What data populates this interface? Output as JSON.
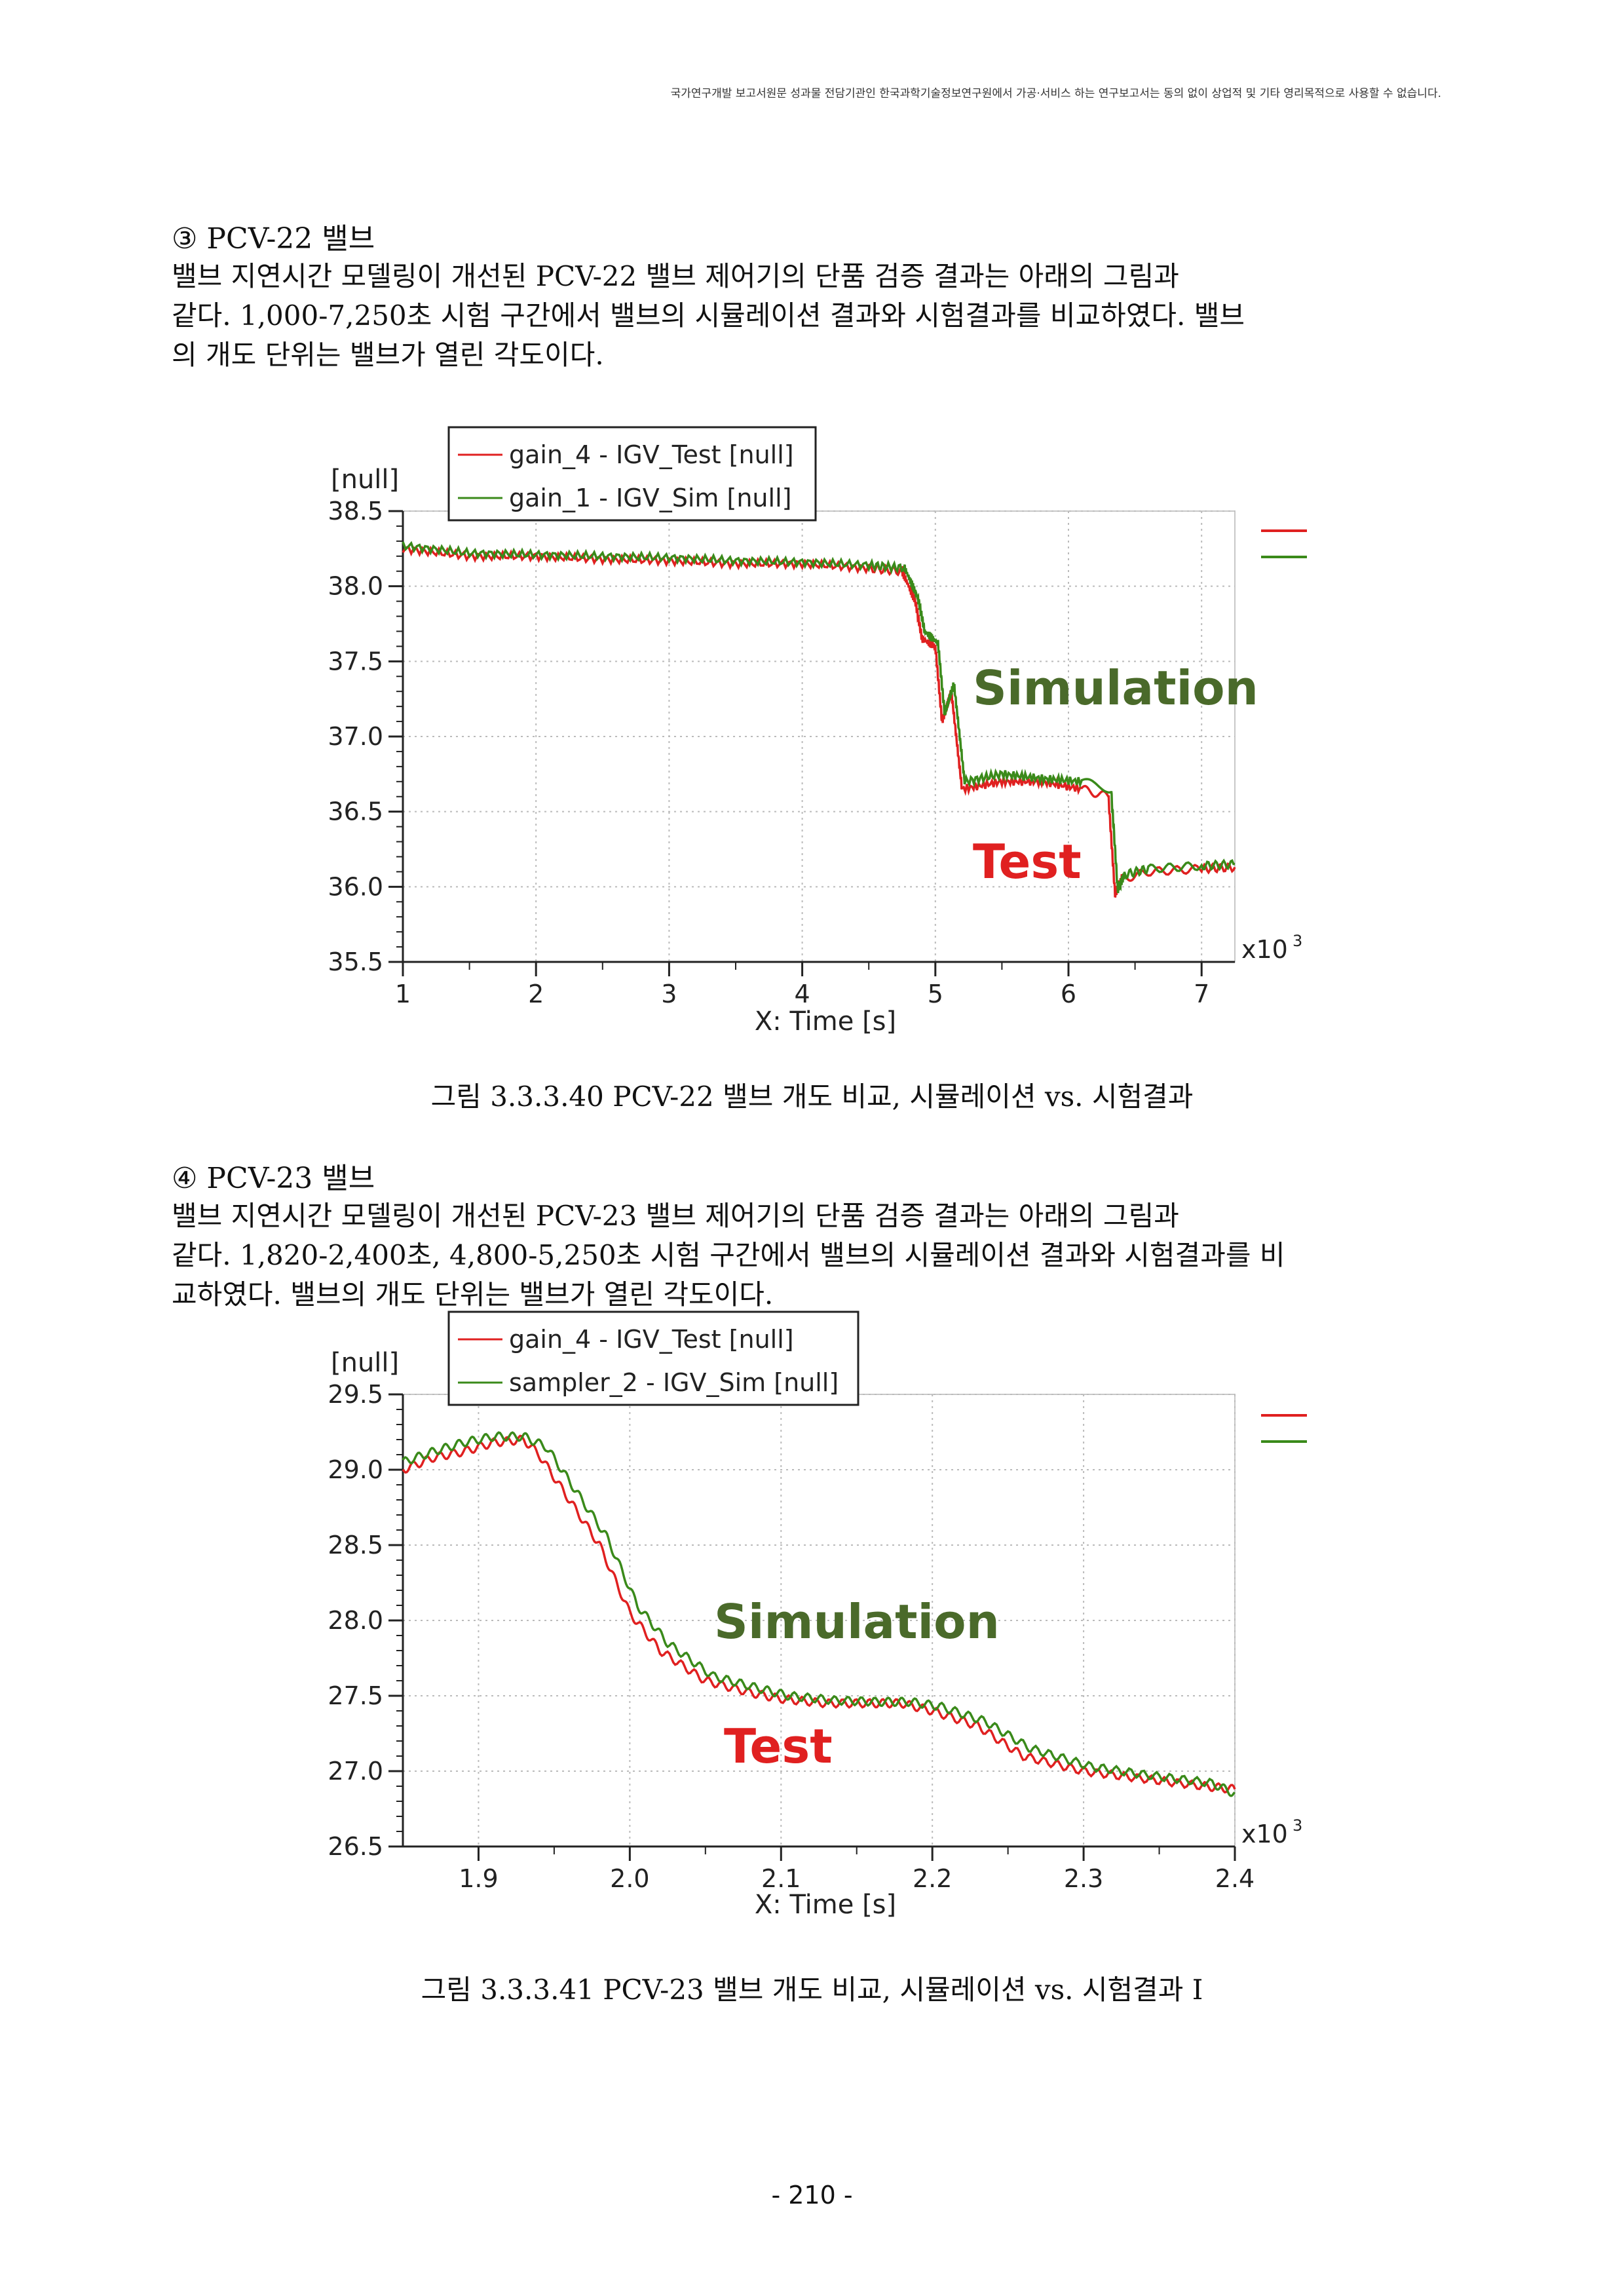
{
  "header_note": "국가연구개발 보고서원문 성과물 전담기관인 한국과학기술정보연구원에서 가공·서비스 하는 연구보고서는 동의 없이 상업적 및 기타 영리목적으로 사용할 수 없습니다.",
  "section3": {
    "title": "③ PCV-22 밸브",
    "lines": [
      "밸브 지연시간 모델링이 개선된 PCV-22 밸브 제어기의 단품 검증 결과는 아래의 그림과",
      "같다. 1,000-7,250초 시험 구간에서 밸브의 시뮬레이션 결과와 시험결과를 비교하였다. 밸브",
      "의 개도 단위는 밸브가 열린 각도이다."
    ]
  },
  "section4": {
    "title": "④ PCV-23 밸브",
    "lines": [
      "밸브 지연시간 모델링이 개선된 PCV-23 밸브 제어기의 단품 검증 결과는 아래의 그림과",
      "같다. 1,820-2,400초, 4,800-5,250초 시험 구간에서 밸브의 시뮬레이션 결과와 시험결과를 비",
      "교하였다. 밸브의 개도 단위는 밸브가 열린 각도이다."
    ]
  },
  "caption1": "그림 3.3.3.40 PCV-22 밸브 개도 비교, 시뮬레이션 vs. 시험결과",
  "caption2": "그림 3.3.3.41 PCV-23 밸브 개도 비교, 시뮬레이션 vs. 시험결과 I",
  "page_number": "- 210 -",
  "colors": {
    "test": "#e02020",
    "sim": "#3a8a1a",
    "annot_sim": "#4a6a2a",
    "annot_test": "#e02020"
  },
  "chart_data": [
    {
      "type": "line",
      "yunit": "[null]",
      "xlabel": "X: Time [s]",
      "x_multiplier": "x10",
      "x_multiplier_exp": "3",
      "xlim": [
        1,
        7.25
      ],
      "ylim": [
        35.5,
        38.5
      ],
      "xticks": [
        1,
        2,
        3,
        4,
        5,
        6,
        7
      ],
      "xtick_labels": [
        "1",
        "2",
        "3",
        "4",
        "5",
        "6",
        "7"
      ],
      "yticks": [
        35.5,
        36.0,
        36.5,
        37.0,
        37.5,
        38.0,
        38.5
      ],
      "ytick_labels": [
        "35.5",
        "36.0",
        "36.5",
        "37.0",
        "37.5",
        "38.0",
        "38.5"
      ],
      "grid": true,
      "legend_position": "top-left",
      "annotations": [
        "Simulation",
        "Test"
      ],
      "series": [
        {
          "name": "gain_4 - IGV_Test [null]",
          "color": "#e02020",
          "x": [
            1.0,
            1.5,
            2.0,
            2.5,
            3.0,
            3.5,
            4.0,
            4.5,
            4.75,
            4.85,
            4.9,
            5.0,
            5.05,
            5.12,
            5.2,
            5.5,
            5.8,
            6.1,
            6.3,
            6.35,
            6.4,
            6.6,
            7.0,
            7.25
          ],
          "y": [
            38.25,
            38.2,
            38.2,
            38.18,
            38.17,
            38.15,
            38.15,
            38.12,
            38.1,
            37.9,
            37.65,
            37.6,
            37.1,
            37.3,
            36.65,
            36.7,
            36.7,
            36.65,
            36.6,
            35.95,
            36.05,
            36.1,
            36.12,
            36.13
          ]
        },
        {
          "name": "gain_1 - IGV_Sim [null]",
          "color": "#3a8a1a",
          "x": [
            1.0,
            1.5,
            2.0,
            2.5,
            3.0,
            3.5,
            4.0,
            4.5,
            4.77,
            4.87,
            4.92,
            5.02,
            5.07,
            5.14,
            5.22,
            5.5,
            5.8,
            6.1,
            6.32,
            6.37,
            6.42,
            6.6,
            7.0,
            7.25
          ],
          "y": [
            38.27,
            38.22,
            38.21,
            38.2,
            38.19,
            38.17,
            38.16,
            38.14,
            38.12,
            37.92,
            37.7,
            37.62,
            37.15,
            37.35,
            36.7,
            36.75,
            36.72,
            36.7,
            36.65,
            35.98,
            36.08,
            36.12,
            36.14,
            36.15
          ]
        }
      ]
    },
    {
      "type": "line",
      "yunit": "[null]",
      "xlabel": "X: Time [s]",
      "x_multiplier": "x10",
      "x_multiplier_exp": "3",
      "xlim": [
        1.85,
        2.4
      ],
      "ylim": [
        26.5,
        29.5
      ],
      "xticks": [
        1.9,
        2.0,
        2.1,
        2.2,
        2.3,
        2.4
      ],
      "xtick_labels": [
        "1.9",
        "2.0",
        "2.1",
        "2.2",
        "2.3",
        "2.4"
      ],
      "yticks": [
        26.5,
        27.0,
        27.5,
        28.0,
        28.5,
        29.0,
        29.5
      ],
      "ytick_labels": [
        "26.5",
        "27.0",
        "27.5",
        "28.0",
        "28.5",
        "29.0",
        "29.5"
      ],
      "grid": true,
      "legend_position": "top-left",
      "annotations": [
        "Simulation",
        "Test"
      ],
      "series": [
        {
          "name": "gain_4 - IGV_Test [null]",
          "color": "#e02020",
          "x": [
            1.85,
            1.87,
            1.89,
            1.91,
            1.93,
            1.94,
            1.96,
            1.98,
            2.0,
            2.02,
            2.05,
            2.08,
            2.1,
            2.13,
            2.16,
            2.18,
            2.2,
            2.23,
            2.26,
            2.3,
            2.34,
            2.38,
            2.4
          ],
          "y": [
            29.0,
            29.08,
            29.12,
            29.18,
            29.2,
            29.1,
            28.8,
            28.5,
            28.05,
            27.8,
            27.6,
            27.52,
            27.48,
            27.45,
            27.45,
            27.45,
            27.4,
            27.3,
            27.1,
            27.0,
            26.95,
            26.9,
            26.88
          ]
        },
        {
          "name": "sampler_2 - IGV_Sim [null]",
          "color": "#3a8a1a",
          "x": [
            1.85,
            1.87,
            1.89,
            1.91,
            1.93,
            1.945,
            1.965,
            1.985,
            2.005,
            2.025,
            2.055,
            2.085,
            2.105,
            2.135,
            2.165,
            2.185,
            2.205,
            2.235,
            2.265,
            2.305,
            2.345,
            2.385,
            2.4
          ],
          "y": [
            29.05,
            29.12,
            29.18,
            29.22,
            29.22,
            29.15,
            28.85,
            28.55,
            28.1,
            27.85,
            27.63,
            27.55,
            27.5,
            27.47,
            27.46,
            27.46,
            27.43,
            27.33,
            27.15,
            27.03,
            26.97,
            26.92,
            26.85
          ]
        }
      ]
    }
  ]
}
